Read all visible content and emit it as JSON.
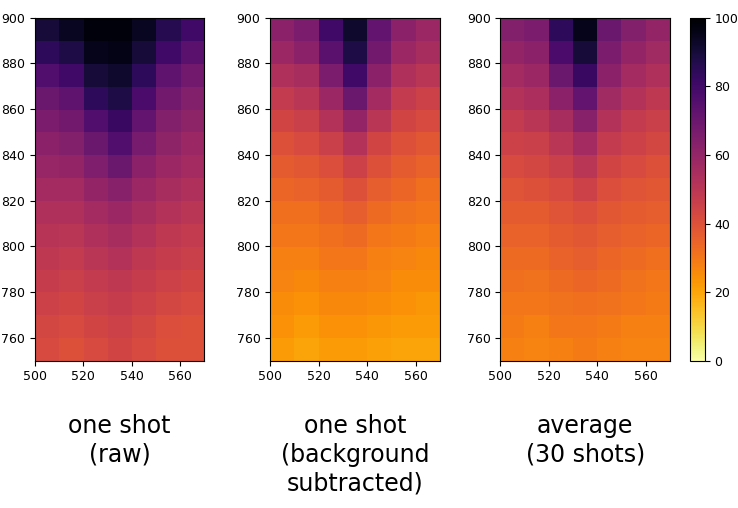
{
  "chart_data": [
    {
      "type": "heatmap",
      "title": "one shot\n(raw)",
      "color": "inferno_r",
      "xlim": [
        500,
        570
      ],
      "ylim": [
        750,
        900
      ],
      "xticks": [
        500,
        520,
        540,
        560
      ],
      "yticks": [
        760,
        780,
        800,
        820,
        840,
        860,
        880,
        900
      ],
      "color_range": [
        0,
        100
      ],
      "cells": [
        [
          42,
          40,
          42,
          44,
          42,
          40,
          40
        ],
        [
          43,
          42,
          44,
          45,
          43,
          41,
          40
        ],
        [
          45,
          44,
          46,
          47,
          45,
          43,
          42
        ],
        [
          47,
          46,
          48,
          49,
          47,
          45,
          44
        ],
        [
          49,
          48,
          50,
          52,
          49,
          47,
          46
        ],
        [
          51,
          50,
          53,
          55,
          52,
          49,
          48
        ],
        [
          53,
          53,
          56,
          58,
          55,
          52,
          50
        ],
        [
          56,
          56,
          60,
          63,
          58,
          55,
          53
        ],
        [
          59,
          60,
          65,
          70,
          62,
          58,
          56
        ],
        [
          62,
          64,
          70,
          76,
          67,
          61,
          58
        ],
        [
          66,
          68,
          76,
          82,
          72,
          64,
          61
        ],
        [
          70,
          73,
          84,
          88,
          78,
          68,
          64
        ],
        [
          76,
          80,
          90,
          92,
          84,
          73,
          68
        ],
        [
          84,
          88,
          95,
          96,
          90,
          80,
          74
        ],
        [
          90,
          94,
          98,
          98,
          94,
          86,
          80
        ]
      ]
    },
    {
      "type": "heatmap",
      "title": "one shot\n(background\nsubtracted)",
      "color": "inferno_r",
      "xlim": [
        500,
        570
      ],
      "ylim": [
        750,
        900
      ],
      "xticks": [
        500,
        520,
        540,
        560
      ],
      "yticks": [
        760,
        780,
        800,
        820,
        840,
        860,
        880,
        900
      ],
      "color_range": [
        0,
        100
      ],
      "cells": [
        [
          22,
          20,
          22,
          22,
          21,
          20,
          20
        ],
        [
          24,
          22,
          24,
          24,
          23,
          22,
          22
        ],
        [
          25,
          24,
          26,
          26,
          25,
          24,
          23
        ],
        [
          27,
          26,
          28,
          28,
          27,
          25,
          25
        ],
        [
          28,
          28,
          30,
          30,
          28,
          27,
          26
        ],
        [
          30,
          30,
          32,
          33,
          30,
          29,
          28
        ],
        [
          32,
          32,
          34,
          36,
          33,
          31,
          30
        ],
        [
          34,
          35,
          37,
          40,
          36,
          34,
          32
        ],
        [
          37,
          38,
          41,
          45,
          40,
          37,
          35
        ],
        [
          40,
          42,
          46,
          52,
          44,
          40,
          38
        ],
        [
          44,
          46,
          52,
          60,
          50,
          44,
          42
        ],
        [
          48,
          50,
          58,
          70,
          56,
          48,
          45
        ],
        [
          53,
          55,
          66,
          80,
          62,
          53,
          50
        ],
        [
          58,
          62,
          74,
          88,
          68,
          58,
          55
        ],
        [
          62,
          66,
          80,
          92,
          72,
          62,
          58
        ]
      ]
    },
    {
      "type": "heatmap",
      "title": "average\n(30 shots)",
      "color": "inferno_r",
      "xlim": [
        500,
        570
      ],
      "ylim": [
        750,
        900
      ],
      "xticks": [
        500,
        520,
        540,
        560
      ],
      "yticks": [
        760,
        780,
        800,
        820,
        840,
        860,
        880,
        900
      ],
      "color_range": [
        0,
        100
      ],
      "colorbar_ticks": [
        0,
        20,
        40,
        60,
        80,
        100
      ],
      "cells": [
        [
          28,
          27,
          28,
          29,
          28,
          27,
          27
        ],
        [
          29,
          28,
          30,
          30,
          29,
          28,
          28
        ],
        [
          30,
          30,
          31,
          32,
          31,
          30,
          29
        ],
        [
          32,
          31,
          33,
          34,
          33,
          31,
          30
        ],
        [
          33,
          33,
          35,
          36,
          34,
          33,
          32
        ],
        [
          35,
          35,
          37,
          38,
          36,
          35,
          34
        ],
        [
          37,
          37,
          39,
          41,
          38,
          37,
          36
        ],
        [
          39,
          40,
          42,
          45,
          41,
          39,
          38
        ],
        [
          42,
          43,
          46,
          50,
          44,
          42,
          40
        ],
        [
          45,
          46,
          50,
          56,
          48,
          45,
          43
        ],
        [
          48,
          50,
          55,
          63,
          52,
          48,
          46
        ],
        [
          52,
          54,
          62,
          72,
          57,
          52,
          49
        ],
        [
          56,
          58,
          70,
          82,
          62,
          56,
          53
        ],
        [
          60,
          62,
          78,
          90,
          66,
          60,
          57
        ],
        [
          64,
          66,
          84,
          95,
          70,
          64,
          60
        ]
      ]
    }
  ]
}
